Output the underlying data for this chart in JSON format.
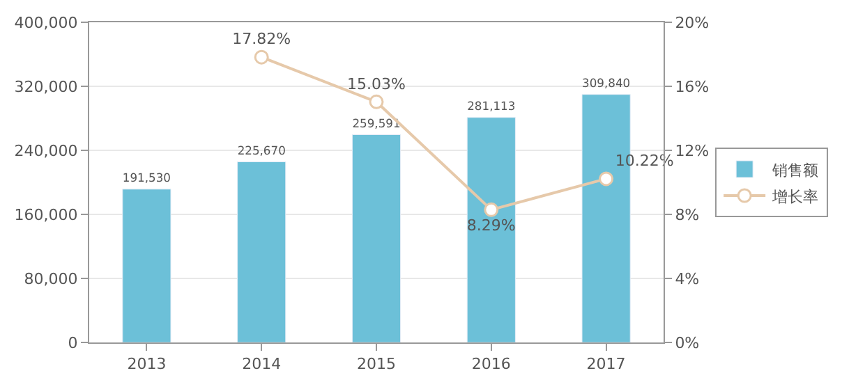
{
  "chart_data": {
    "type": "bar",
    "categories": [
      "2013",
      "2014",
      "2015",
      "2016",
      "2017"
    ],
    "series": [
      {
        "name": "销售额",
        "color": "#6cc0d8",
        "values": [
          191530,
          225670,
          259591,
          281113,
          309840
        ],
        "value_labels": [
          "191,530",
          "225,670",
          "259,591",
          "281,113",
          "309,840"
        ]
      },
      {
        "name": "增长率",
        "type": "line",
        "axis": "y2",
        "color": "#e6c9aa",
        "marker": "circle",
        "values": [
          null,
          17.82,
          15.03,
          8.29,
          10.22
        ],
        "value_labels": [
          null,
          "17.82%",
          "15.03%",
          "8.29%",
          "10.22%"
        ]
      }
    ],
    "ylim": [
      0,
      400000
    ],
    "yticks": [
      {
        "value": 0,
        "label": "0"
      },
      {
        "value": 80000,
        "label": "80,000"
      },
      {
        "value": 160000,
        "label": "160,000"
      },
      {
        "value": 240000,
        "label": "240,000"
      },
      {
        "value": 320000,
        "label": "320,000"
      },
      {
        "value": 400000,
        "label": "400,000"
      }
    ],
    "y2lim": [
      0,
      20
    ],
    "y2ticks": [
      {
        "value": 0,
        "label": "0%"
      },
      {
        "value": 4,
        "label": "4%"
      },
      {
        "value": 8,
        "label": "8%"
      },
      {
        "value": 12,
        "label": "12%"
      },
      {
        "value": 16,
        "label": "16%"
      },
      {
        "value": 20,
        "label": "20%"
      }
    ],
    "grid": "y",
    "legend": "right"
  }
}
